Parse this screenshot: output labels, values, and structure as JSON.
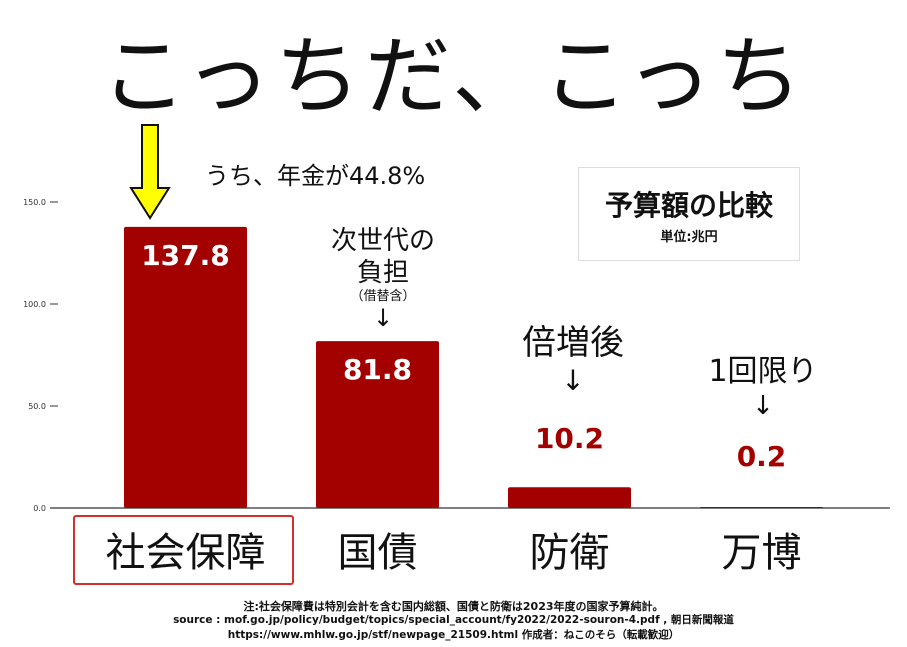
{
  "headline": "こっちだ、こっち",
  "legend": {
    "title": "予算額の比較",
    "subtitle": "単位:兆円"
  },
  "annotations": {
    "pension": "うち、年金が44.8%",
    "debt_line1": "次世代の",
    "debt_line2": "負担",
    "debt_small": "（借替含）",
    "defense": "倍増後",
    "expo": "1回限り",
    "arrow": "↓"
  },
  "footnotes": {
    "line1": "注:社会保障費は特別会計を含む国内総額、国債と防衛は2023年度の国家予算純計。",
    "line2": "source : mof.go.jp/policy/budget/topics/special_account/fy2022/2022-souron-4.pdf , 朝日新聞報道",
    "line3": "https://www.mhlw.go.jp/stf/newpage_21509.html  作成者：ねこのそら（転載歓迎）"
  },
  "colors": {
    "bar": "#a30000",
    "label_outside": "#a30000",
    "label_inside": "#ffffff",
    "highlight_arrow": "#ffff00",
    "category_box": "#d32f2f"
  },
  "chart_data": {
    "type": "bar",
    "categories": [
      "社会保障",
      "国債",
      "防衛",
      "万博"
    ],
    "values": [
      137.8,
      81.8,
      10.2,
      0.2
    ],
    "data_labels": [
      "137.8",
      "81.8",
      "10.2",
      "0.2"
    ],
    "title": "予算額の比較",
    "subtitle": "単位:兆円",
    "ylim": [
      0,
      150
    ],
    "yticks": [
      "0.0",
      "50.0",
      "100.0",
      "150.0"
    ],
    "ytick_values": [
      0,
      50,
      100,
      150
    ],
    "grid": false
  }
}
